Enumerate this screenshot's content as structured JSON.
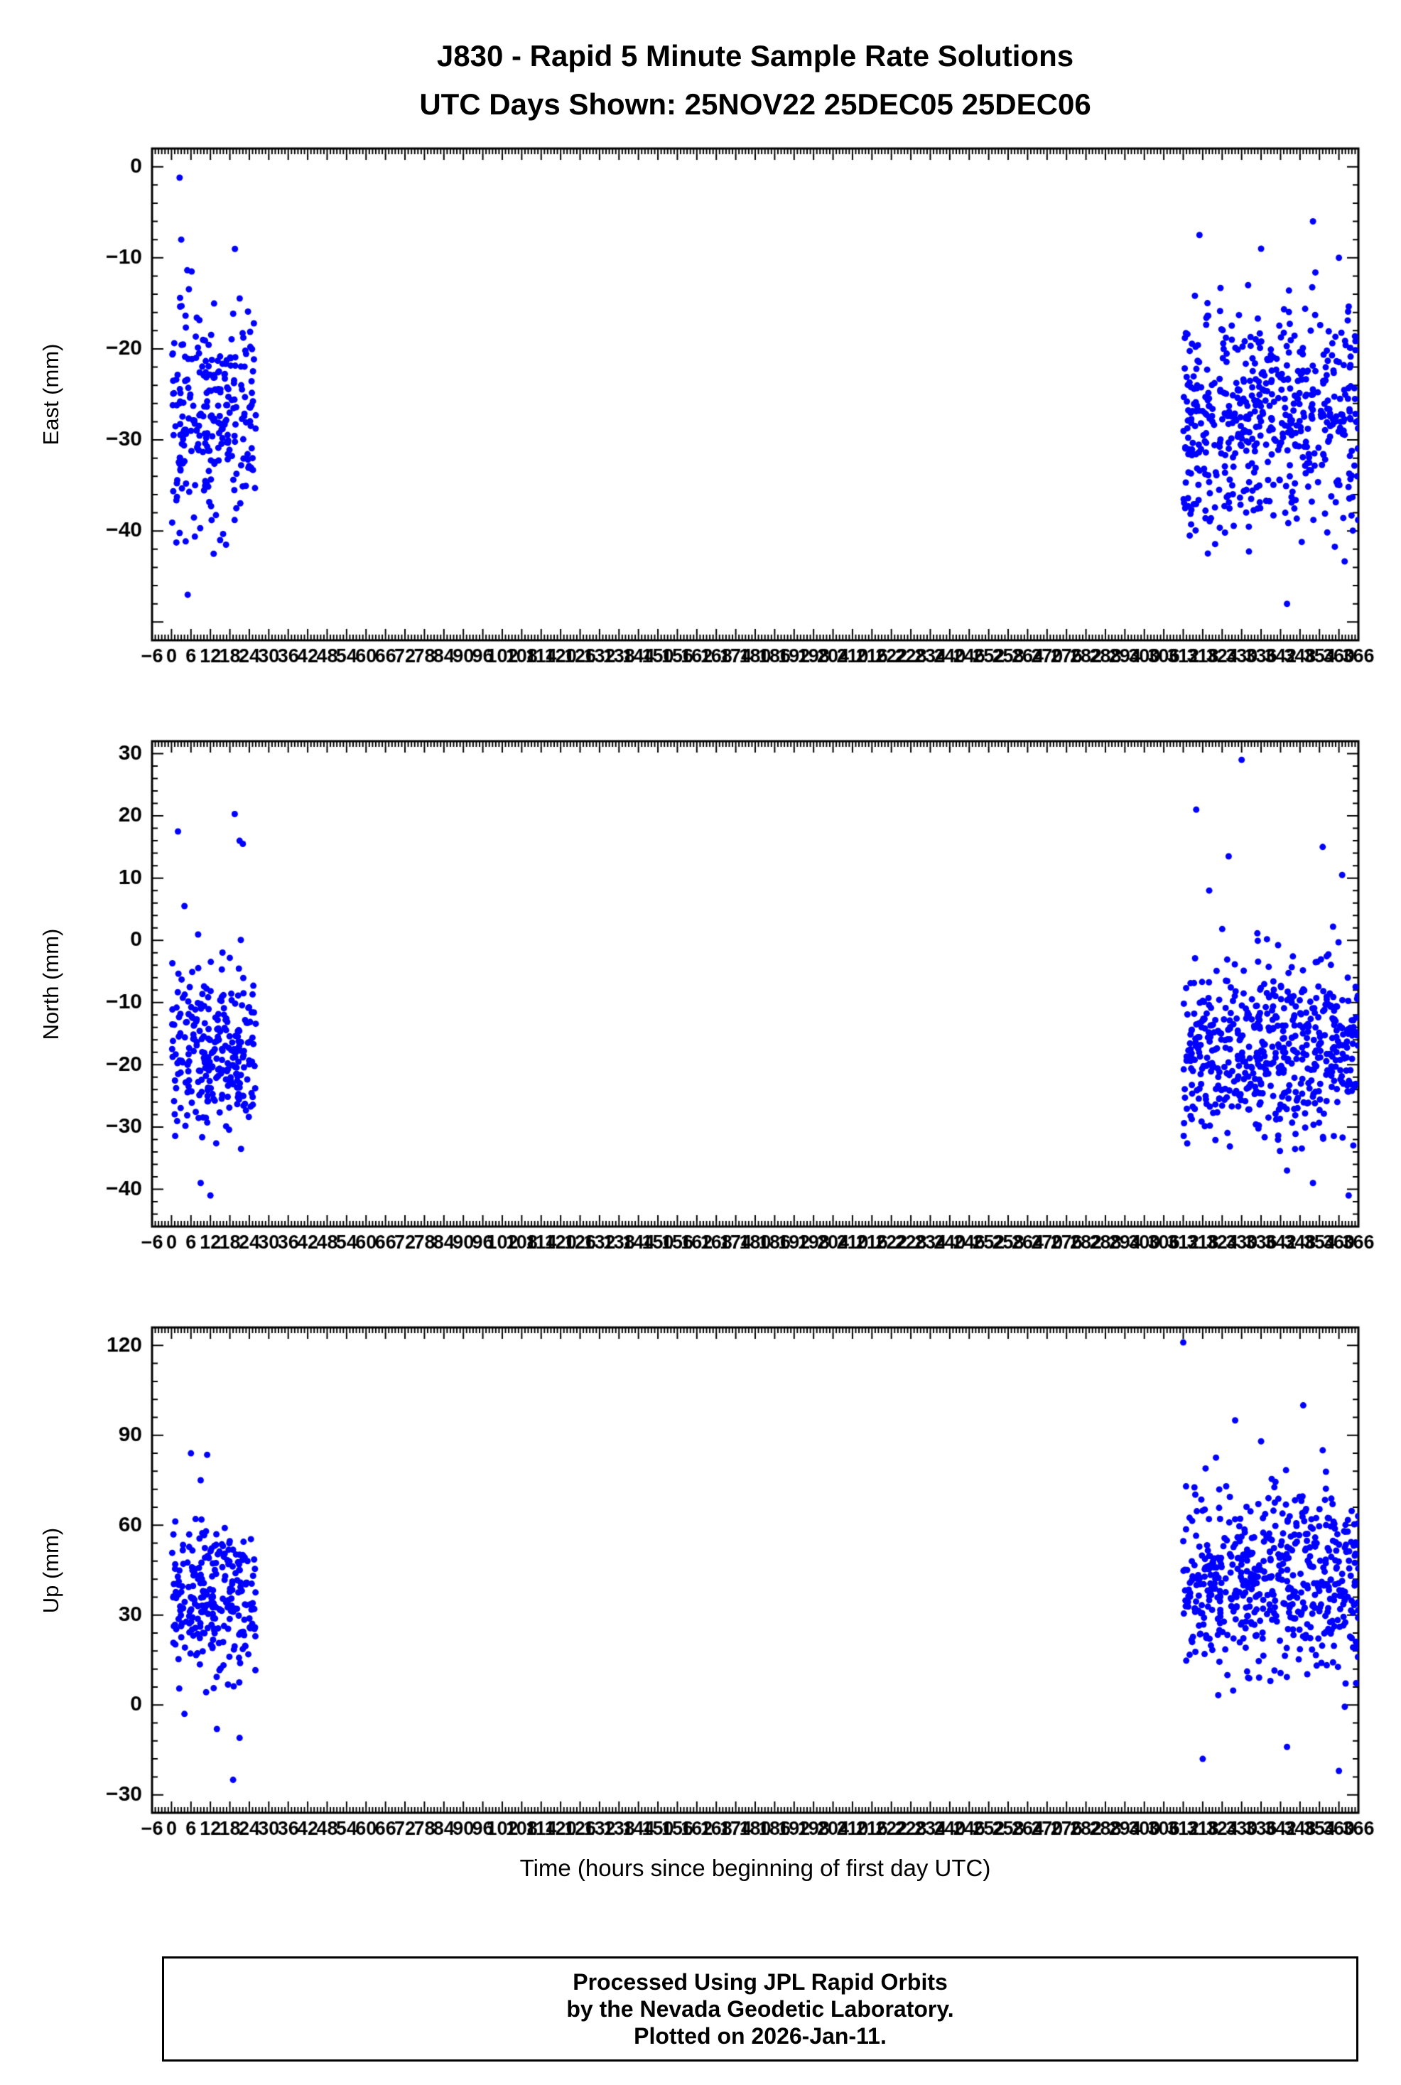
{
  "title": {
    "line1": "J830 - Rapid 5 Minute Sample Rate Solutions",
    "line2": "UTC Days Shown:  25NOV22 25DEC05 25DEC06"
  },
  "x_axis": {
    "min": -6,
    "max": 366,
    "major_step": 6,
    "minor_step": 1,
    "label": "Time (hours since beginning of first day UTC)"
  },
  "colors": {
    "marker": "#0000ff",
    "axis": "#000000",
    "background": "#ffffff"
  },
  "footer": {
    "line1": "Processed Using JPL Rapid Orbits",
    "line2": "by the Nevada Geodetic Laboratory.",
    "line3": "Plotted on 2026-Jan-11."
  },
  "chart_data": [
    {
      "type": "scatter",
      "ylabel": "East (mm)",
      "ylim": [
        -52,
        2
      ],
      "yticks": [
        0,
        -10,
        -20,
        -30,
        -40
      ],
      "y_major_step": 10,
      "y_minor_step": 2,
      "clusters": [
        {
          "seed": 11,
          "x_range": [
            0.2,
            26
          ],
          "count": 260,
          "y_mean": -27,
          "y_sd": 6.2,
          "y_clip": [
            -43,
            -9
          ]
        },
        {
          "seed": 12,
          "x_range": [
            312,
            366
          ],
          "count": 540,
          "y_mean": -27.5,
          "y_sd": 6.0,
          "y_clip": [
            -44,
            -11
          ]
        }
      ],
      "outliers": [
        [
          2.5,
          -1.2
        ],
        [
          5,
          -47
        ],
        [
          13,
          -42.5
        ],
        [
          15,
          -41
        ],
        [
          3,
          -8
        ],
        [
          20,
          -37.5
        ],
        [
          317,
          -7.5
        ],
        [
          352,
          -6
        ],
        [
          344,
          -48
        ],
        [
          336,
          -9
        ],
        [
          360,
          -10
        ],
        [
          332,
          -13
        ]
      ]
    },
    {
      "type": "scatter",
      "ylabel": "North (mm)",
      "ylim": [
        -46,
        32
      ],
      "yticks": [
        30,
        20,
        10,
        0,
        -10,
        -20,
        -30,
        -40
      ],
      "y_major_step": 10,
      "y_minor_step": 2,
      "clusters": [
        {
          "seed": 21,
          "x_range": [
            0.2,
            26
          ],
          "count": 260,
          "y_mean": -17,
          "y_sd": 6.8,
          "y_clip": [
            -36,
            1
          ]
        },
        {
          "seed": 22,
          "x_range": [
            312,
            366
          ],
          "count": 540,
          "y_mean": -17.5,
          "y_sd": 7.0,
          "y_clip": [
            -34,
            3
          ]
        }
      ],
      "outliers": [
        [
          2,
          17.5
        ],
        [
          4,
          5.5
        ],
        [
          19.5,
          20.3
        ],
        [
          21,
          16
        ],
        [
          22,
          15.5
        ],
        [
          9,
          -39
        ],
        [
          12,
          -41
        ],
        [
          316,
          21
        ],
        [
          330,
          29
        ],
        [
          326,
          13.5
        ],
        [
          355,
          15
        ],
        [
          361,
          10.5
        ],
        [
          344,
          -37
        ],
        [
          352,
          -39
        ],
        [
          363,
          -41
        ],
        [
          320,
          8
        ]
      ]
    },
    {
      "type": "scatter",
      "ylabel": "Up (mm)",
      "ylim": [
        -36,
        126
      ],
      "yticks": [
        120,
        90,
        60,
        30,
        0,
        -30
      ],
      "y_major_step": 30,
      "y_minor_step": 6,
      "clusters": [
        {
          "seed": 31,
          "x_range": [
            0.2,
            26
          ],
          "count": 260,
          "y_mean": 35,
          "y_sd": 13,
          "y_clip": [
            2,
            70
          ]
        },
        {
          "seed": 32,
          "x_range": [
            312,
            366
          ],
          "count": 540,
          "y_mean": 42,
          "y_sd": 15,
          "y_clip": [
            -2,
            83
          ]
        }
      ],
      "outliers": [
        [
          6,
          84
        ],
        [
          11,
          83.5
        ],
        [
          9,
          75
        ],
        [
          14,
          -8
        ],
        [
          19,
          -25
        ],
        [
          21,
          -11
        ],
        [
          4,
          -3
        ],
        [
          312,
          121
        ],
        [
          328,
          95
        ],
        [
          349,
          100
        ],
        [
          318,
          -18
        ],
        [
          360,
          -22
        ],
        [
          344,
          -14
        ],
        [
          336,
          88
        ],
        [
          355,
          85
        ]
      ]
    }
  ]
}
